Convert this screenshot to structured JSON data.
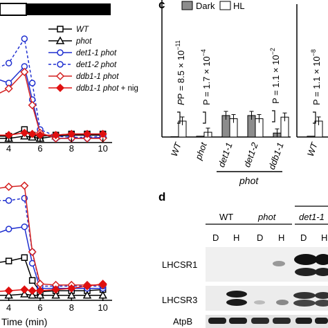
{
  "panel_c": {
    "label": "c",
    "legend": [
      {
        "name": "Dark",
        "color": "#8c8c8c"
      },
      {
        "name": "HL",
        "color": "#ffffff"
      }
    ],
    "pvalues": [
      "P = 8.5 × 10",
      "P = 1.7 × 10",
      "P = 1.1 × 10",
      "P = 1.1 × 10"
    ],
    "pvalue_exponents": [
      "−11",
      "−4",
      "−2",
      "−8"
    ],
    "group_label": "phot"
  },
  "panel_d": {
    "label": "d",
    "groups": [
      "WT",
      "phot",
      "det1-1"
    ],
    "lanes": [
      "D",
      "H",
      "D",
      "H",
      "D",
      "H"
    ],
    "rows": [
      "LHCSR1",
      "LHCSR3",
      "AtpB"
    ]
  },
  "left_panels": {
    "xlabel": "Time (min)",
    "legend": [
      {
        "name": "WT",
        "color": "#000000",
        "marker": "square",
        "dash": false
      },
      {
        "name": "phot",
        "color": "#000000",
        "marker": "triangle",
        "dash": false
      },
      {
        "name": "det1-1 phot",
        "color": "#1f2fd0",
        "marker": "circle",
        "dash": false
      },
      {
        "name": "det1-2 phot",
        "color": "#1f2fd0",
        "marker": "circle",
        "dash": true
      },
      {
        "name": "ddb1-1 phot",
        "color": "#d42020",
        "marker": "diamond-open",
        "dash": false
      },
      {
        "name": "ddb1-1 phot + nig",
        "color": "#e01010",
        "marker": "diamond-filled",
        "dash": false
      }
    ]
  },
  "chart_data": [
    {
      "type": "line",
      "title": "",
      "xlabel": "",
      "ylabel": "",
      "xlim": [
        3,
        10.5
      ],
      "x_ticks": [
        "4",
        "6",
        "8",
        "10"
      ],
      "x": [
        3,
        4,
        5,
        5.5,
        6,
        7,
        8,
        9,
        10
      ],
      "series": [
        {
          "name": "WT",
          "values": [
            0.02,
            0.02,
            0.08,
            0.03,
            0.02,
            0.03,
            0.04,
            0.04,
            0.04
          ]
        },
        {
          "name": "phot",
          "values": [
            0.0,
            0.0,
            0.02,
            0.01,
            0.0,
            0.02,
            0.03,
            0.03,
            0.03
          ]
        },
        {
          "name": "det1-1 phot",
          "values": [
            0.55,
            0.5,
            0.65,
            0.35,
            0.05,
            0.0,
            0.0,
            0.0,
            0.01
          ]
        },
        {
          "name": "det1-2 phot",
          "values": [
            0.62,
            0.68,
            0.9,
            0.5,
            0.08,
            0.02,
            0.01,
            0.01,
            0.02
          ]
        },
        {
          "name": "ddb1-1 phot",
          "values": [
            0.38,
            0.45,
            0.6,
            0.3,
            0.05,
            0.0,
            0.0,
            0.0,
            0.0
          ]
        },
        {
          "name": "ddb1-1 phot + nig",
          "values": [
            0.03,
            0.03,
            0.05,
            0.04,
            0.03,
            0.03,
            0.04,
            0.04,
            0.04
          ]
        }
      ]
    },
    {
      "type": "line",
      "title": "",
      "xlabel": "Time (min)",
      "ylabel": "",
      "xlim": [
        3,
        10.5
      ],
      "x_ticks": [
        "4",
        "6",
        "8",
        "10"
      ],
      "x": [
        3,
        4,
        5,
        5.5,
        6,
        7,
        8,
        9,
        10
      ],
      "series": [
        {
          "name": "WT",
          "values": [
            0.3,
            0.32,
            0.35,
            0.15,
            0.05,
            0.06,
            0.06,
            0.06,
            0.07
          ]
        },
        {
          "name": "phot",
          "values": [
            0.02,
            0.02,
            0.03,
            0.02,
            0.02,
            0.02,
            0.02,
            0.02,
            0.02
          ]
        },
        {
          "name": "det1-1 phot",
          "values": [
            0.55,
            0.6,
            0.62,
            0.3,
            0.08,
            0.08,
            0.08,
            0.08,
            0.08
          ]
        },
        {
          "name": "det1-2 phot",
          "values": [
            0.85,
            0.85,
            0.87,
            0.4,
            0.1,
            0.1,
            0.1,
            0.1,
            0.1
          ]
        },
        {
          "name": "ddb1-1 phot",
          "values": [
            0.95,
            0.97,
            0.98,
            0.4,
            0.12,
            0.11,
            0.11,
            0.11,
            0.11
          ]
        },
        {
          "name": "ddb1-1 phot + nig",
          "values": [
            0.05,
            0.06,
            0.07,
            0.06,
            0.06,
            0.07,
            0.08,
            0.1,
            0.12
          ]
        }
      ]
    },
    {
      "type": "bar",
      "title": "",
      "xlabel": "",
      "ylabel": "",
      "ylim": [
        0,
        4.2
      ],
      "y_ticks": [
        "0",
        "1",
        "2",
        "3",
        "4"
      ],
      "categories": [
        "WT",
        "phot",
        "det1-1",
        "det1-2",
        "ddb1-1"
      ],
      "series": [
        {
          "name": "Dark",
          "values": [
            0.02,
            0.05,
            1.35,
            1.35,
            0.25
          ]
        },
        {
          "name": "HL",
          "values": [
            1.0,
            0.3,
            1.15,
            1.15,
            1.25
          ]
        }
      ]
    },
    {
      "type": "bar",
      "title": "",
      "xlabel": "",
      "ylabel": "",
      "categories": [
        "WT"
      ],
      "series": [
        {
          "name": "Dark",
          "values": [
            0.05
          ]
        },
        {
          "name": "HL",
          "values": [
            1.0
          ]
        }
      ]
    }
  ]
}
